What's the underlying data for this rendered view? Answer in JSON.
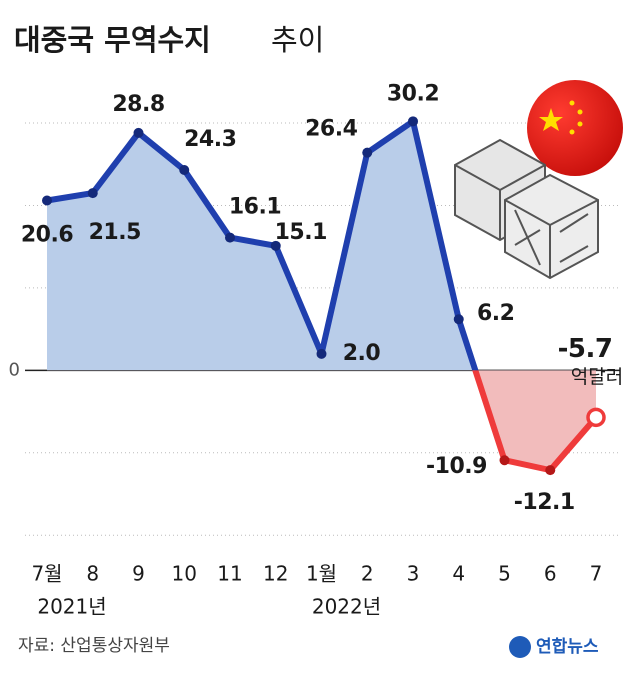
{
  "chart_data": {
    "type": "line",
    "title": "대중국 무역수지",
    "title_suffix": "추이",
    "unit": "억달러",
    "categories": [
      "7월",
      "8",
      "9",
      "10",
      "11",
      "12",
      "1월",
      "2",
      "3",
      "4",
      "5",
      "6",
      "7"
    ],
    "year_labels": [
      {
        "index": 0,
        "label": "2021년"
      },
      {
        "index": 6,
        "label": "2022년"
      }
    ],
    "values": [
      20.6,
      21.5,
      28.8,
      24.3,
      16.1,
      15.1,
      2.0,
      26.4,
      30.2,
      6.2,
      -10.9,
      -12.1,
      -5.7
    ],
    "value_labels": [
      "20.6",
      "21.5",
      "28.8",
      "24.3",
      "16.1",
      "15.1",
      "2.0",
      "26.4",
      "30.2",
      "6.2",
      "-10.9",
      "-12.1",
      "-5.7"
    ],
    "positive_color": "#1f3fae",
    "positive_fill": "#b9cde9",
    "negative_color": "#ef3b3b",
    "negative_fill": "#f2bcbc",
    "ylim": [
      -23,
      34
    ],
    "yticks": [
      0
    ],
    "ygrid": [
      -20,
      -10,
      10,
      20,
      30
    ],
    "source": "자료: 산업통상자원부",
    "logo": "연합뉴스"
  }
}
